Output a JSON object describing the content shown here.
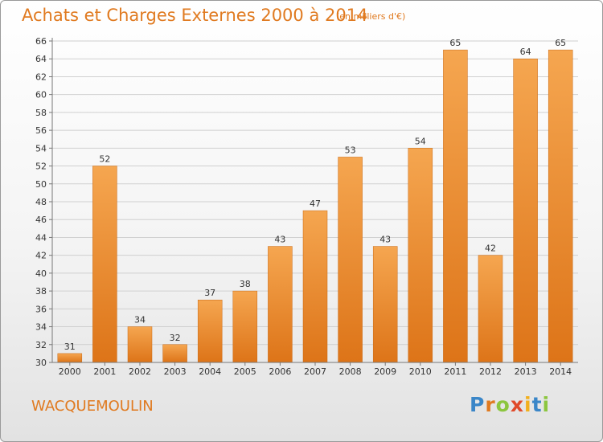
{
  "header": {
    "title": "Achats et Charges Externes 2000 à 2014",
    "subtitle": "(en milliers d'€)"
  },
  "footer": {
    "place": "WACQUEMOULIN",
    "logo_letters": [
      "P",
      "r",
      "o",
      "x",
      "i",
      "t",
      "i"
    ],
    "logo_colors": [
      "#3a86c8",
      "#e07a20",
      "#8cc63f",
      "#e04a2a",
      "#f2b01e",
      "#3a86c8",
      "#8cc63f"
    ]
  },
  "chart_data": {
    "type": "bar",
    "title": "Achats et Charges Externes 2000 à 2014",
    "subtitle": "(en milliers d'€)",
    "categories": [
      "2000",
      "2001",
      "2002",
      "2003",
      "2004",
      "2005",
      "2006",
      "2007",
      "2008",
      "2009",
      "2010",
      "2011",
      "2012",
      "2013",
      "2014"
    ],
    "values": [
      31,
      52,
      34,
      32,
      37,
      38,
      43,
      47,
      53,
      43,
      54,
      65,
      42,
      64,
      65
    ],
    "ylim": [
      30,
      66
    ],
    "yticks": [
      30,
      32,
      34,
      36,
      38,
      40,
      42,
      44,
      46,
      48,
      50,
      52,
      54,
      56,
      58,
      60,
      62,
      64,
      66
    ],
    "grid": true,
    "bar_color_light": "#f5a650",
    "bar_color_dark": "#dd7418",
    "xlabel": "",
    "ylabel": ""
  }
}
